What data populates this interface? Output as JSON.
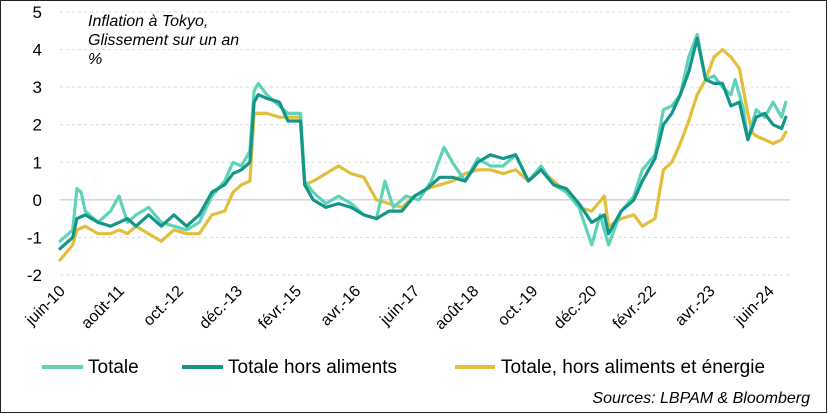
{
  "chart_data": {
    "type": "line",
    "title_lines": [
      "Inflation à Tokyo,",
      "Glissement sur un an",
      "%"
    ],
    "source": "Sources: LBPAM & Bloomberg",
    "ylim": [
      -2,
      5
    ],
    "yticks": [
      "-2",
      "-1",
      "0",
      "1",
      "2",
      "3",
      "4",
      "5"
    ],
    "x_start": "2010-06",
    "x_end": "2024-11",
    "xtick_labels": [
      "juin-10",
      "août-11",
      "oct.-12",
      "déc.-13",
      "févr.-15",
      "avr.-16",
      "juin-17",
      "août-18",
      "oct.-19",
      "déc.-20",
      "févr.-22",
      "avr.-23",
      "juin-24"
    ],
    "xtick_dates": [
      "2010-06",
      "2011-08",
      "2012-10",
      "2013-12",
      "2015-02",
      "2016-04",
      "2017-06",
      "2018-08",
      "2019-10",
      "2020-12",
      "2022-02",
      "2023-04",
      "2024-06"
    ],
    "grid": "horizontal-dashed",
    "legend_position": "bottom",
    "series": [
      {
        "name": "Totale",
        "color": "#5fd3b8",
        "points": [
          [
            "2010-06",
            -1.1
          ],
          [
            "2010-09",
            -0.8
          ],
          [
            "2010-10",
            0.3
          ],
          [
            "2010-11",
            0.2
          ],
          [
            "2010-12",
            -0.3
          ],
          [
            "2011-03",
            -0.6
          ],
          [
            "2011-06",
            -0.3
          ],
          [
            "2011-08",
            0.1
          ],
          [
            "2011-10",
            -0.6
          ],
          [
            "2011-12",
            -0.4
          ],
          [
            "2012-03",
            -0.2
          ],
          [
            "2012-06",
            -0.6
          ],
          [
            "2012-09",
            -0.7
          ],
          [
            "2012-12",
            -0.8
          ],
          [
            "2013-03",
            -0.6
          ],
          [
            "2013-06",
            0.1
          ],
          [
            "2013-09",
            0.5
          ],
          [
            "2013-11",
            1.0
          ],
          [
            "2014-01",
            0.9
          ],
          [
            "2014-03",
            1.3
          ],
          [
            "2014-04",
            2.9
          ],
          [
            "2014-05",
            3.1
          ],
          [
            "2014-07",
            2.8
          ],
          [
            "2014-10",
            2.5
          ],
          [
            "2014-12",
            2.3
          ],
          [
            "2015-03",
            2.3
          ],
          [
            "2015-04",
            0.5
          ],
          [
            "2015-06",
            0.2
          ],
          [
            "2015-09",
            -0.1
          ],
          [
            "2015-12",
            0.1
          ],
          [
            "2016-03",
            -0.1
          ],
          [
            "2016-06",
            -0.4
          ],
          [
            "2016-09",
            -0.5
          ],
          [
            "2016-11",
            0.5
          ],
          [
            "2017-01",
            -0.2
          ],
          [
            "2017-04",
            0.1
          ],
          [
            "2017-07",
            0.0
          ],
          [
            "2017-10",
            0.5
          ],
          [
            "2018-01",
            1.4
          ],
          [
            "2018-03",
            1.0
          ],
          [
            "2018-06",
            0.5
          ],
          [
            "2018-09",
            1.1
          ],
          [
            "2018-12",
            0.9
          ],
          [
            "2019-03",
            0.9
          ],
          [
            "2019-06",
            1.2
          ],
          [
            "2019-09",
            0.5
          ],
          [
            "2019-12",
            0.9
          ],
          [
            "2020-03",
            0.4
          ],
          [
            "2020-06",
            0.2
          ],
          [
            "2020-09",
            -0.2
          ],
          [
            "2020-12",
            -1.2
          ],
          [
            "2021-02",
            -0.4
          ],
          [
            "2021-04",
            -1.2
          ],
          [
            "2021-07",
            -0.3
          ],
          [
            "2021-10",
            0.1
          ],
          [
            "2021-12",
            0.8
          ],
          [
            "2022-03",
            1.2
          ],
          [
            "2022-05",
            2.4
          ],
          [
            "2022-07",
            2.5
          ],
          [
            "2022-09",
            2.8
          ],
          [
            "2022-11",
            3.8
          ],
          [
            "2023-01",
            4.4
          ],
          [
            "2023-03",
            3.2
          ],
          [
            "2023-05",
            3.3
          ],
          [
            "2023-07",
            3.0
          ],
          [
            "2023-09",
            2.8
          ],
          [
            "2023-10",
            3.2
          ],
          [
            "2023-12",
            2.4
          ],
          [
            "2024-01",
            1.6
          ],
          [
            "2024-03",
            2.4
          ],
          [
            "2024-05",
            2.2
          ],
          [
            "2024-07",
            2.6
          ],
          [
            "2024-09",
            2.2
          ],
          [
            "2024-10",
            2.6
          ]
        ]
      },
      {
        "name": "Totale hors aliments",
        "color": "#14958a",
        "points": [
          [
            "2010-06",
            -1.3
          ],
          [
            "2010-09",
            -1.0
          ],
          [
            "2010-10",
            -0.5
          ],
          [
            "2010-12",
            -0.4
          ],
          [
            "2011-03",
            -0.6
          ],
          [
            "2011-06",
            -0.7
          ],
          [
            "2011-08",
            -0.6
          ],
          [
            "2011-10",
            -0.5
          ],
          [
            "2011-12",
            -0.7
          ],
          [
            "2012-03",
            -0.4
          ],
          [
            "2012-06",
            -0.7
          ],
          [
            "2012-09",
            -0.4
          ],
          [
            "2012-12",
            -0.7
          ],
          [
            "2013-03",
            -0.4
          ],
          [
            "2013-06",
            0.2
          ],
          [
            "2013-09",
            0.4
          ],
          [
            "2013-11",
            0.7
          ],
          [
            "2014-01",
            0.8
          ],
          [
            "2014-03",
            1.0
          ],
          [
            "2014-04",
            2.6
          ],
          [
            "2014-05",
            2.8
          ],
          [
            "2014-07",
            2.7
          ],
          [
            "2014-10",
            2.6
          ],
          [
            "2014-12",
            2.1
          ],
          [
            "2015-03",
            2.1
          ],
          [
            "2015-04",
            0.4
          ],
          [
            "2015-06",
            0.0
          ],
          [
            "2015-09",
            -0.2
          ],
          [
            "2015-12",
            -0.1
          ],
          [
            "2016-03",
            -0.2
          ],
          [
            "2016-06",
            -0.4
          ],
          [
            "2016-09",
            -0.5
          ],
          [
            "2016-12",
            -0.3
          ],
          [
            "2017-03",
            -0.3
          ],
          [
            "2017-06",
            0.1
          ],
          [
            "2017-09",
            0.3
          ],
          [
            "2017-12",
            0.6
          ],
          [
            "2018-03",
            0.6
          ],
          [
            "2018-06",
            0.5
          ],
          [
            "2018-09",
            1.0
          ],
          [
            "2018-12",
            1.2
          ],
          [
            "2019-03",
            1.1
          ],
          [
            "2019-06",
            1.2
          ],
          [
            "2019-09",
            0.5
          ],
          [
            "2019-12",
            0.8
          ],
          [
            "2020-03",
            0.4
          ],
          [
            "2020-06",
            0.3
          ],
          [
            "2020-09",
            -0.1
          ],
          [
            "2020-12",
            -0.6
          ],
          [
            "2021-03",
            -0.4
          ],
          [
            "2021-04",
            -0.9
          ],
          [
            "2021-07",
            -0.3
          ],
          [
            "2021-10",
            0.0
          ],
          [
            "2021-12",
            0.5
          ],
          [
            "2022-03",
            1.1
          ],
          [
            "2022-05",
            2.0
          ],
          [
            "2022-07",
            2.3
          ],
          [
            "2022-09",
            2.8
          ],
          [
            "2022-11",
            3.4
          ],
          [
            "2023-01",
            4.3
          ],
          [
            "2023-03",
            3.2
          ],
          [
            "2023-05",
            3.1
          ],
          [
            "2023-07",
            3.1
          ],
          [
            "2023-09",
            2.5
          ],
          [
            "2023-11",
            2.6
          ],
          [
            "2023-12",
            2.1
          ],
          [
            "2024-01",
            1.6
          ],
          [
            "2024-03",
            2.2
          ],
          [
            "2024-05",
            2.3
          ],
          [
            "2024-07",
            2.0
          ],
          [
            "2024-09",
            1.9
          ],
          [
            "2024-10",
            2.2
          ]
        ]
      },
      {
        "name": "Totale, hors aliments et énergie",
        "color": "#e2be3c",
        "points": [
          [
            "2010-06",
            -1.6
          ],
          [
            "2010-09",
            -1.2
          ],
          [
            "2010-10",
            -0.8
          ],
          [
            "2010-12",
            -0.7
          ],
          [
            "2011-03",
            -0.9
          ],
          [
            "2011-06",
            -0.9
          ],
          [
            "2011-08",
            -0.8
          ],
          [
            "2011-10",
            -0.9
          ],
          [
            "2011-12",
            -0.7
          ],
          [
            "2012-03",
            -0.9
          ],
          [
            "2012-06",
            -1.1
          ],
          [
            "2012-09",
            -0.8
          ],
          [
            "2012-12",
            -0.9
          ],
          [
            "2013-03",
            -0.9
          ],
          [
            "2013-06",
            -0.4
          ],
          [
            "2013-09",
            -0.3
          ],
          [
            "2013-11",
            0.2
          ],
          [
            "2014-01",
            0.4
          ],
          [
            "2014-03",
            0.5
          ],
          [
            "2014-04",
            2.3
          ],
          [
            "2014-05",
            2.3
          ],
          [
            "2014-07",
            2.3
          ],
          [
            "2014-10",
            2.2
          ],
          [
            "2014-12",
            2.2
          ],
          [
            "2015-03",
            2.2
          ],
          [
            "2015-04",
            0.4
          ],
          [
            "2015-06",
            0.5
          ],
          [
            "2015-09",
            0.7
          ],
          [
            "2015-12",
            0.9
          ],
          [
            "2016-03",
            0.7
          ],
          [
            "2016-06",
            0.6
          ],
          [
            "2016-09",
            0.0
          ],
          [
            "2016-12",
            -0.1
          ],
          [
            "2017-03",
            -0.2
          ],
          [
            "2017-06",
            0.1
          ],
          [
            "2017-09",
            0.3
          ],
          [
            "2017-12",
            0.4
          ],
          [
            "2018-03",
            0.5
          ],
          [
            "2018-06",
            0.7
          ],
          [
            "2018-09",
            0.8
          ],
          [
            "2018-12",
            0.8
          ],
          [
            "2019-03",
            0.7
          ],
          [
            "2019-06",
            0.8
          ],
          [
            "2019-09",
            0.5
          ],
          [
            "2019-12",
            0.8
          ],
          [
            "2020-03",
            0.5
          ],
          [
            "2020-06",
            0.2
          ],
          [
            "2020-09",
            -0.2
          ],
          [
            "2020-12",
            -0.3
          ],
          [
            "2021-03",
            0.1
          ],
          [
            "2021-04",
            -0.7
          ],
          [
            "2021-07",
            -0.5
          ],
          [
            "2021-10",
            -0.4
          ],
          [
            "2021-12",
            -0.7
          ],
          [
            "2022-03",
            -0.5
          ],
          [
            "2022-05",
            0.8
          ],
          [
            "2022-07",
            1.0
          ],
          [
            "2022-09",
            1.5
          ],
          [
            "2022-11",
            2.1
          ],
          [
            "2023-01",
            2.8
          ],
          [
            "2023-03",
            3.2
          ],
          [
            "2023-05",
            3.8
          ],
          [
            "2023-07",
            4.0
          ],
          [
            "2023-09",
            3.8
          ],
          [
            "2023-11",
            3.5
          ],
          [
            "2023-12",
            2.9
          ],
          [
            "2024-01",
            2.3
          ],
          [
            "2024-02",
            1.8
          ],
          [
            "2024-03",
            1.7
          ],
          [
            "2024-05",
            1.6
          ],
          [
            "2024-07",
            1.5
          ],
          [
            "2024-09",
            1.6
          ],
          [
            "2024-10",
            1.8
          ]
        ]
      }
    ]
  }
}
